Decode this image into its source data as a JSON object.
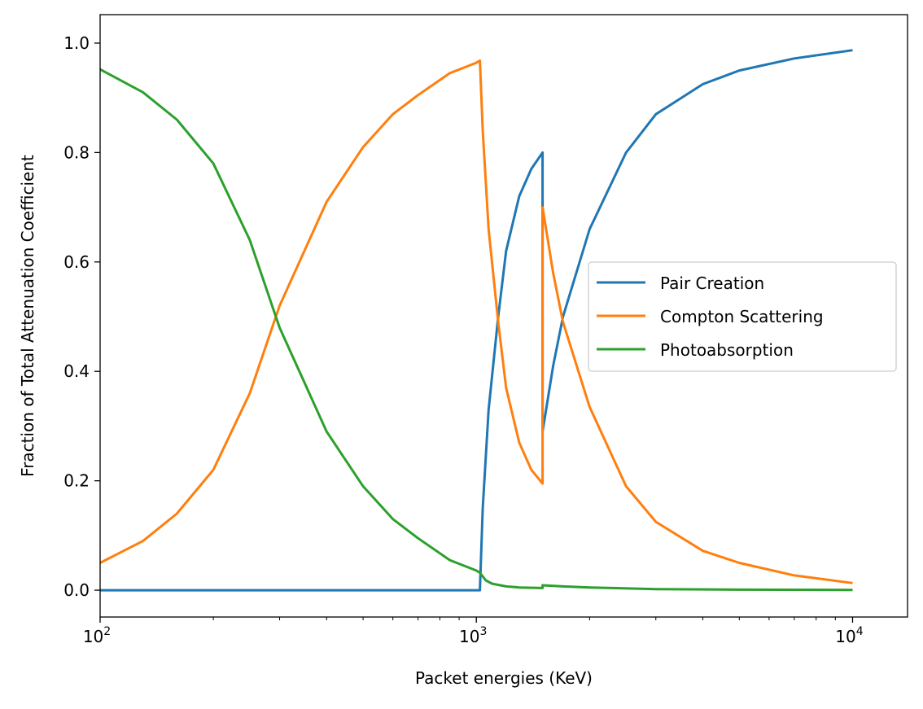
{
  "chart_data": {
    "type": "line",
    "title": "",
    "xlabel": "Packet energies (KeV)",
    "ylabel": "Fraction of Total Attenuation Coefficient",
    "xscale": "log",
    "xlim": [
      100,
      14000
    ],
    "ylim": [
      -0.049,
      1.052
    ],
    "xticks": [
      {
        "value": 100,
        "base": "10",
        "exp": "2"
      },
      {
        "value": 1000,
        "base": "10",
        "exp": "3"
      },
      {
        "value": 10000,
        "base": "10",
        "exp": "4"
      }
    ],
    "yticks": [
      {
        "value": 0.0,
        "label": "0.0"
      },
      {
        "value": 0.2,
        "label": "0.2"
      },
      {
        "value": 0.4,
        "label": "0.4"
      },
      {
        "value": 0.6,
        "label": "0.6"
      },
      {
        "value": 0.8,
        "label": "0.8"
      },
      {
        "value": 1.0,
        "label": "1.0"
      }
    ],
    "grid": false,
    "legend_position": "center-right",
    "series": [
      {
        "name": "Pair Creation",
        "color": "#1f77b4",
        "x": [
          100,
          300,
          600,
          1000,
          1022,
          1040,
          1078,
          1143,
          1200,
          1300,
          1400,
          1500,
          1500,
          1600,
          1700,
          2000,
          2500,
          3000,
          4000,
          5000,
          7000,
          10000
        ],
        "y": [
          0,
          0,
          0,
          0,
          0,
          0.15,
          0.33,
          0.5,
          0.62,
          0.72,
          0.77,
          0.8,
          0.29,
          0.41,
          0.5,
          0.66,
          0.8,
          0.87,
          0.925,
          0.95,
          0.972,
          0.987
        ]
      },
      {
        "name": "Compton Scattering",
        "color": "#ff7f0e",
        "x": [
          100,
          130,
          160,
          200,
          250,
          300,
          400,
          500,
          600,
          700,
          850,
          1000,
          1022,
          1040,
          1078,
          1143,
          1200,
          1300,
          1400,
          1500,
          1500,
          1600,
          1700,
          2000,
          2500,
          3000,
          4000,
          5000,
          7000,
          10000
        ],
        "y": [
          0.05,
          0.09,
          0.14,
          0.22,
          0.36,
          0.52,
          0.71,
          0.81,
          0.87,
          0.905,
          0.945,
          0.964,
          0.968,
          0.84,
          0.66,
          0.49,
          0.37,
          0.27,
          0.22,
          0.195,
          0.7,
          0.58,
          0.49,
          0.335,
          0.19,
          0.125,
          0.072,
          0.05,
          0.027,
          0.013
        ]
      },
      {
        "name": "Photoabsorption",
        "color": "#2ca02c",
        "x": [
          100,
          130,
          160,
          200,
          250,
          300,
          400,
          500,
          600,
          700,
          850,
          1000,
          1022,
          1060,
          1100,
          1200,
          1300,
          1500,
          1500,
          1700,
          2000,
          3000,
          5000,
          10000
        ],
        "y": [
          0.952,
          0.91,
          0.86,
          0.78,
          0.64,
          0.48,
          0.29,
          0.19,
          0.13,
          0.095,
          0.055,
          0.036,
          0.032,
          0.018,
          0.012,
          0.007,
          0.005,
          0.004,
          0.009,
          0.007,
          0.005,
          0.002,
          0.001,
          0.0005
        ]
      }
    ]
  }
}
